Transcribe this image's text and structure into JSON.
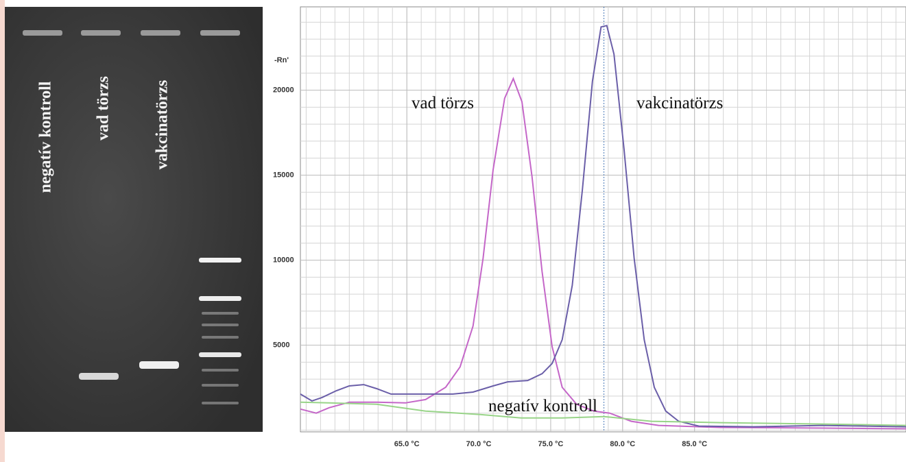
{
  "gel": {
    "lanes": [
      "negatív kontroll",
      "vad törzs",
      "vakcinatörzs"
    ]
  },
  "chart_data": {
    "type": "line",
    "y_label": "-Rn'",
    "xlim": [
      57.6,
      99.7
    ],
    "ylim": [
      -100,
      24900
    ],
    "xticks": [
      {
        "value": 65,
        "label": "65.0 °C"
      },
      {
        "value": 70,
        "label": "70.0 °C"
      },
      {
        "value": 75,
        "label": "75.0 °C"
      },
      {
        "value": 80,
        "label": "80.0 °C"
      },
      {
        "value": 85,
        "label": "85.0  °C"
      }
    ],
    "yticks": [
      5000,
      10000,
      15000,
      20000
    ],
    "grid": true,
    "marker_line_x": 78.7,
    "series": [
      {
        "name": "vad törzs",
        "color": "#c466c8",
        "x": [
          57.6,
          58.7,
          59.6,
          61.0,
          62.9,
          64.9,
          66.3,
          67.7,
          68.7,
          69.6,
          70.3,
          71.0,
          71.8,
          72.4,
          73.0,
          73.7,
          74.4,
          75.1,
          75.8,
          76.8,
          78.0,
          79.1,
          80.6,
          82.5,
          86.8,
          93.9,
          99.7
        ],
        "values": [
          1240,
          1000,
          1320,
          1640,
          1640,
          1600,
          1800,
          2520,
          3720,
          6120,
          10120,
          15320,
          19520,
          20680,
          19320,
          14920,
          9320,
          4920,
          2520,
          1520,
          1120,
          1000,
          520,
          280,
          160,
          120,
          80
        ]
      },
      {
        "name": "vakcinatörzs",
        "color": "#6a5ea8",
        "x": [
          57.6,
          58.4,
          59.1,
          60.1,
          61.0,
          62.0,
          62.9,
          63.9,
          65.3,
          68.2,
          69.6,
          71.0,
          72.0,
          73.4,
          74.4,
          75.1,
          75.8,
          76.5,
          77.2,
          77.9,
          78.5,
          78.9,
          79.4,
          80.1,
          80.8,
          81.5,
          82.2,
          83.0,
          83.9,
          85.3,
          89.1,
          93.9,
          99.7
        ],
        "values": [
          2120,
          1720,
          1920,
          2320,
          2600,
          2680,
          2440,
          2120,
          2120,
          2120,
          2240,
          2600,
          2840,
          2920,
          3320,
          3920,
          5320,
          8520,
          14120,
          20520,
          23720,
          23800,
          22120,
          16520,
          10120,
          5320,
          2520,
          1120,
          520,
          240,
          200,
          280,
          200
        ]
      },
      {
        "name": "negatív kontroll",
        "color": "#98d488",
        "x": [
          57.6,
          59.6,
          62.9,
          66.3,
          70.1,
          72.95,
          75.8,
          78.7,
          82.0,
          86.8,
          93.9,
          99.7
        ],
        "values": [
          1640,
          1600,
          1520,
          1120,
          920,
          720,
          720,
          800,
          520,
          440,
          360,
          280
        ]
      }
    ]
  }
}
